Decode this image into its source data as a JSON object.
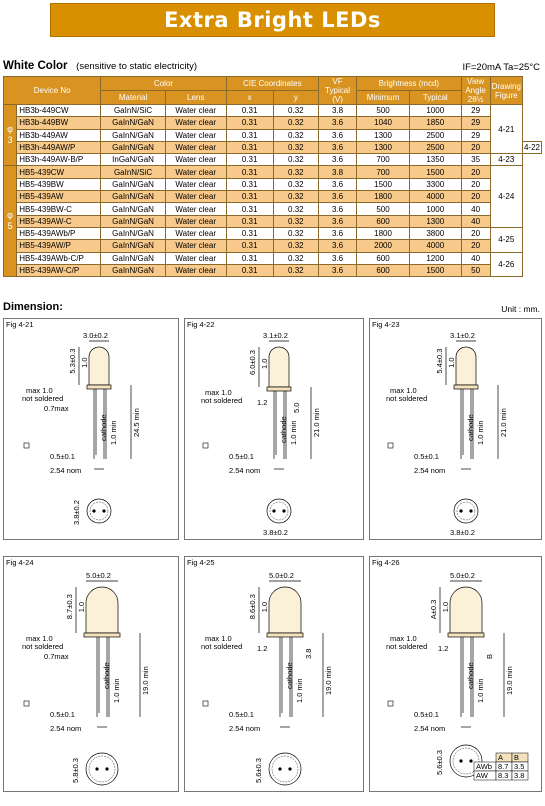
{
  "banner": {
    "title": "Extra Bright LEDs"
  },
  "section": {
    "title": "White Color",
    "subtitle": "(sensitive to static electricity)",
    "conditions": "IF=20mA   Ta=25°C"
  },
  "table": {
    "header": {
      "device_no": "Device No",
      "color": "Color",
      "material": "Material",
      "lens": "Lens",
      "cie": "CIE Coordinates",
      "x": "x",
      "y": "y",
      "vf": "VF Typical (V)",
      "brightness": "Brightness   (mcd)",
      "minimum": "Minimum",
      "typical": "Typical",
      "view_angle": "View Angle 2θ½",
      "drawing": "Drawing Figure"
    },
    "group_labels": {
      "g3": "φ 3",
      "g5": "φ 5"
    },
    "rows": [
      {
        "device": "HB3b-449CW",
        "material": "GaInN/SiC",
        "lens": "Water clear",
        "x": "0.31",
        "y": "0.32",
        "vf": "3.8",
        "min": "500",
        "typ": "1000",
        "angle": "29"
      },
      {
        "device": "HB3b-449BW",
        "material": "GaInN/GaN",
        "lens": "Water clear",
        "x": "0.31",
        "y": "0.32",
        "vf": "3.6",
        "min": "1040",
        "typ": "1850",
        "angle": "29"
      },
      {
        "device": "HB3b-449AW",
        "material": "GaInN/GaN",
        "lens": "Water clear",
        "x": "0.31",
        "y": "0.32",
        "vf": "3.6",
        "min": "1300",
        "typ": "2500",
        "angle": "29"
      },
      {
        "device": "HB3h-449AW/P",
        "material": "GaInN/GaN",
        "lens": "Water clear",
        "x": "0.31",
        "y": "0.32",
        "vf": "3.6",
        "min": "1300",
        "typ": "2500",
        "angle": "20"
      },
      {
        "device": "HB3h-449AW-B/P",
        "material": "InGaN/GaN",
        "lens": "Water clear",
        "x": "0.31",
        "y": "0.32",
        "vf": "3.6",
        "min": "700",
        "typ": "1350",
        "angle": "35"
      },
      {
        "device": "HB5-439CW",
        "material": "GaInN/SiC",
        "lens": "Water clear",
        "x": "0.31",
        "y": "0.32",
        "vf": "3.8",
        "min": "700",
        "typ": "1500",
        "angle": "20"
      },
      {
        "device": "HB5-439BW",
        "material": "GaInN/GaN",
        "lens": "Water clear",
        "x": "0.31",
        "y": "0.32",
        "vf": "3.6",
        "min": "1500",
        "typ": "3300",
        "angle": "20"
      },
      {
        "device": "HB5-439AW",
        "material": "GaInN/GaN",
        "lens": "Water clear",
        "x": "0.31",
        "y": "0.32",
        "vf": "3.6",
        "min": "1800",
        "typ": "4000",
        "angle": "20"
      },
      {
        "device": "HB5-439BW-C",
        "material": "GaInN/GaN",
        "lens": "Water clear",
        "x": "0.31",
        "y": "0.32",
        "vf": "3.6",
        "min": "500",
        "typ": "1000",
        "angle": "40"
      },
      {
        "device": "HB5-439AW-C",
        "material": "GaInN/GaN",
        "lens": "Water clear",
        "x": "0.31",
        "y": "0.32",
        "vf": "3.6",
        "min": "600",
        "typ": "1300",
        "angle": "40"
      },
      {
        "device": "HB5-439AWb/P",
        "material": "GaInN/GaN",
        "lens": "Water clear",
        "x": "0.31",
        "y": "0.32",
        "vf": "3.6",
        "min": "1800",
        "typ": "3800",
        "angle": "20"
      },
      {
        "device": "HB5-439AW/P",
        "material": "GaInN/GaN",
        "lens": "Water clear",
        "x": "0.31",
        "y": "0.32",
        "vf": "3.6",
        "min": "2000",
        "typ": "4000",
        "angle": "20"
      },
      {
        "device": "HB5-439AWb-C/P",
        "material": "GaInN/GaN",
        "lens": "Water clear",
        "x": "0.31",
        "y": "0.32",
        "vf": "3.6",
        "min": "600",
        "typ": "1200",
        "angle": "40"
      },
      {
        "device": "HB5-439AW-C/P",
        "material": "GaInN/GaN",
        "lens": "Water clear",
        "x": "0.31",
        "y": "0.32",
        "vf": "3.6",
        "min": "600",
        "typ": "1500",
        "angle": "50"
      }
    ],
    "figures": {
      "f421": "4-21",
      "f422": "4-22",
      "f423": "4-23",
      "f424": "4-24",
      "f425": "4-25",
      "f426": "4-26"
    }
  },
  "dimension": {
    "title": "Dimension:",
    "unit": "Unit : mm."
  },
  "figs": {
    "f421": {
      "label": "Fig 4-21",
      "dia": "3.0±0.2",
      "h": "5.3±0.3",
      "t": "1.0",
      "max": "max 1.0",
      "ns": "not soldered",
      "lead": "0.7max",
      "cathode": "cathode",
      "lmin": "1.0 min",
      "total": "24.5 min",
      "sq": "0.5±0.1",
      "pitch": "2.54 nom",
      "base": "3.8±0.2"
    },
    "f422": {
      "label": "Fig 4-22",
      "dia": "3.1±0.2",
      "h": "6.0±0.3",
      "t": "1.0",
      "max": "max 1.0",
      "ns": "not soldered",
      "gap": "1.2",
      "body": "5.0",
      "cathode": "cathode",
      "lmin": "1.0 min",
      "total": "21.0 min",
      "sq": "0.5±0.1",
      "pitch": "2.54 nom",
      "base": "3.8±0.2"
    },
    "f423": {
      "label": "Fig 4-23",
      "dia": "3.1±0.2",
      "h": "5.4±0.3",
      "t": "1.0",
      "max": "max 1.0",
      "ns": "not soldered",
      "cathode": "cathode",
      "lmin": "1.0 min",
      "total": "21.0 min",
      "sq": "0.5±0.1",
      "pitch": "2.54 nom",
      "base": "3.8±0.2"
    },
    "f424": {
      "label": "Fig 4-24",
      "dia": "5.0±0.2",
      "h": "8.7±0.3",
      "t": "1.0",
      "max": "max 1.0",
      "ns": "not soldered",
      "lead": "0.7max",
      "cathode": "cathode",
      "lmin": "1.0 min",
      "total": "19.0 min",
      "sq": "0.5±0.1",
      "pitch": "2.54 nom",
      "base": "5.8±0.3"
    },
    "f425": {
      "label": "Fig 4-25",
      "dia": "5.0±0.2",
      "h": "8.6±0.3",
      "t": "1.0",
      "max": "max 1.0",
      "ns": "not soldered",
      "gap": "1.2",
      "body": "3.8",
      "cathode": "cathode",
      "lmin": "1.0 min",
      "total": "19.0 min",
      "sq": "0.5±0.1",
      "pitch": "2.54 nom",
      "base": "5.6±0.3"
    },
    "f426": {
      "label": "Fig 4-26",
      "dia": "5.0±0.2",
      "h": "A±0.3",
      "t": "1.0",
      "max": "max 1.0",
      "ns": "not soldered",
      "gap": "1.2",
      "body": "B",
      "cathode": "cathode",
      "lmin": "1.0 min",
      "total": "19.0 min",
      "sq": "0.5±0.1",
      "pitch": "2.54 nom",
      "base": "5.6±0.3",
      "ab": {
        "hA": "A",
        "hB": "B",
        "r1": "AWb",
        "r1a": "8.7",
        "r1b": "3.5",
        "r2": "AW",
        "r2a": "8.3",
        "r2b": "3.8"
      }
    }
  },
  "colors": {
    "banner": "#d99000",
    "header": "#d89320",
    "alt_row": "#f7c98a"
  }
}
